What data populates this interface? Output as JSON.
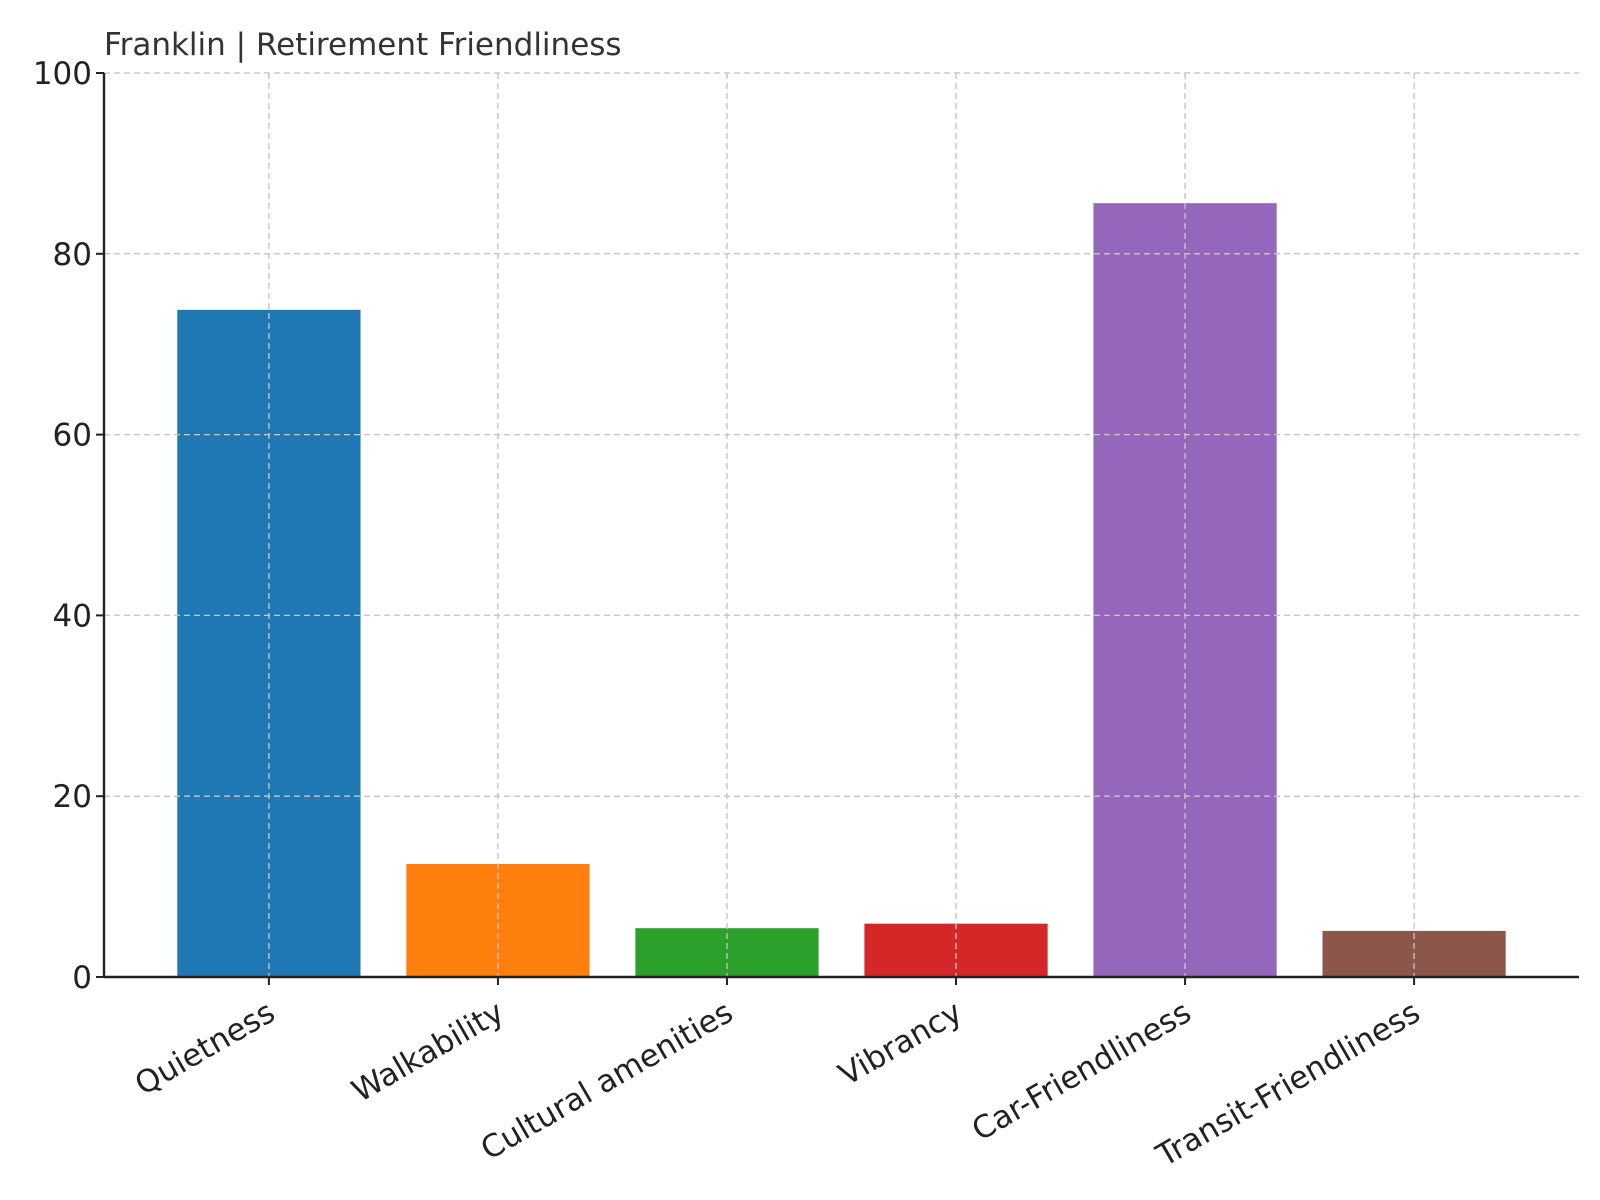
{
  "chart_data": {
    "type": "bar",
    "title": "Franklin | Retirement Friendliness",
    "xlabel": "",
    "ylabel": "",
    "categories": [
      "Quietness",
      "Walkability",
      "Cultural amenities",
      "Vibrancy",
      "Car-Friendliness",
      "Transit-Friendliness"
    ],
    "values": [
      73.8,
      12.5,
      5.4,
      5.9,
      85.6,
      5.1
    ],
    "colors": [
      "#1f77b4",
      "#ff7f0e",
      "#2ca02c",
      "#d62728",
      "#9467bd",
      "#8c564b"
    ],
    "ylim": [
      0,
      100
    ],
    "yticks": [
      0,
      20,
      40,
      60,
      80,
      100
    ],
    "grid": true,
    "grid_style": "dashed"
  }
}
